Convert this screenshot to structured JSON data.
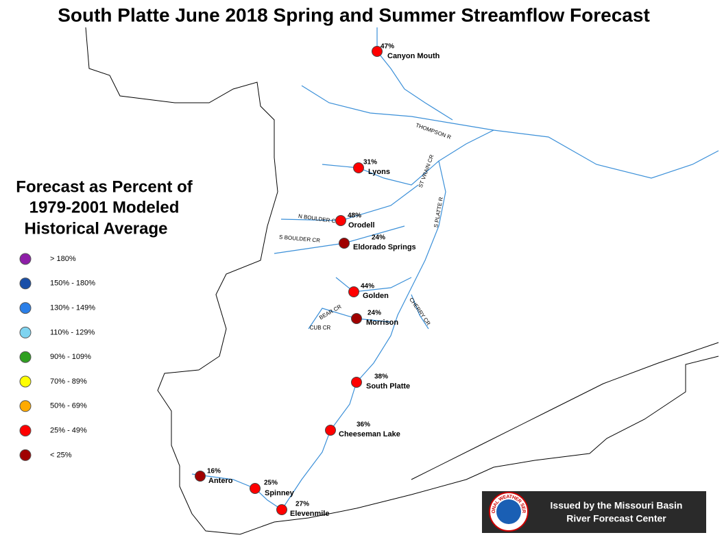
{
  "title": "South Platte June 2018 Spring and Summer Streamflow Forecast",
  "legend": {
    "title": [
      "Forecast as Percent of",
      "1979-2001 Modeled",
      "Historical Average"
    ],
    "items": [
      {
        "label": "> 180%",
        "color": "#8e1ea8"
      },
      {
        "label": "150% - 180%",
        "color": "#1a4fa8"
      },
      {
        "label": "130% - 149%",
        "color": "#2b7fe8"
      },
      {
        "label": "110% - 129%",
        "color": "#7fd4f0"
      },
      {
        "label": "90% - 109%",
        "color": "#2fa020"
      },
      {
        "label": "70% - 89%",
        "color": "#ffff00"
      },
      {
        "label": "50% - 69%",
        "color": "#ffaa00"
      },
      {
        "label": "25% - 49%",
        "color": "#ff0000"
      },
      {
        "label": "< 25%",
        "color": "#a00000"
      }
    ]
  },
  "stations": [
    {
      "name": "Canyon Mouth",
      "value": 47,
      "value_label": "47%",
      "color": "#ff0000"
    },
    {
      "name": "Lyons",
      "value": 31,
      "value_label": "31%",
      "color": "#ff0000"
    },
    {
      "name": "Orodell",
      "value": 48,
      "value_label": "48%",
      "color": "#ff0000"
    },
    {
      "name": "Eldorado Springs",
      "value": 24,
      "value_label": "24%",
      "color": "#a00000"
    },
    {
      "name": "Golden",
      "value": 44,
      "value_label": "44%",
      "color": "#ff0000"
    },
    {
      "name": "Morrison",
      "value": 24,
      "value_label": "24%",
      "color": "#a00000"
    },
    {
      "name": "South Platte",
      "value": 38,
      "value_label": "38%",
      "color": "#ff0000"
    },
    {
      "name": "Cheeseman Lake",
      "value": 36,
      "value_label": "36%",
      "color": "#ff0000"
    },
    {
      "name": "Antero",
      "value": 16,
      "value_label": "16%",
      "color": "#a00000"
    },
    {
      "name": "Spinney",
      "value": 25,
      "value_label": "25%",
      "color": "#ff0000"
    },
    {
      "name": "Elevenmile",
      "value": 27,
      "value_label": "27%",
      "color": "#ff0000"
    }
  ],
  "rivers": [
    "THOMPSON R",
    "ST VRAIN CR",
    "S PLATTE R",
    "N BOULDER CR",
    "S BOULDER CR",
    "BEAR CR",
    "CUB CR",
    "CHERRY CR"
  ],
  "footer": {
    "lines": [
      "Issued by the Missouri Basin",
      "River Forecast Center"
    ],
    "logo": "NATIONAL WEATHER SERVICE"
  }
}
